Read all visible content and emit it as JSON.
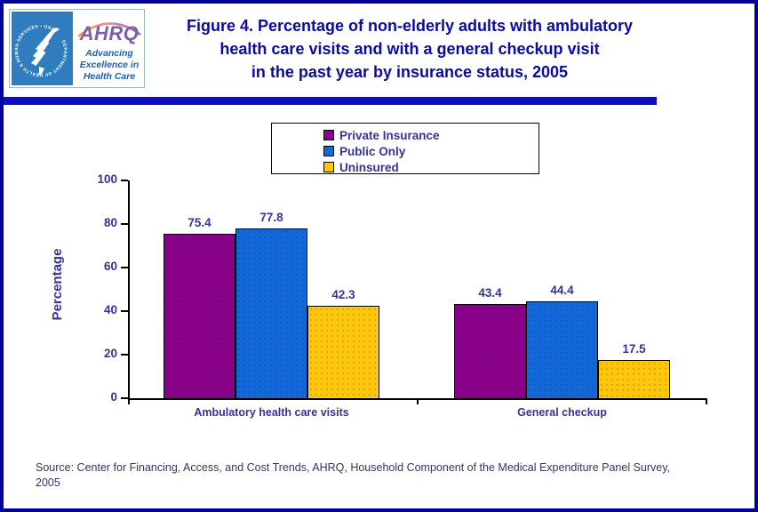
{
  "header": {
    "logo": {
      "seal_ring_text": "DEPARTMENT OF HEALTH & HUMAN SERVICES • USA",
      "ahrq_acronym": "AHRQ",
      "tagline_lines": [
        "Advancing",
        "Excellence in",
        "Health Care"
      ]
    },
    "title_lines": [
      "Figure 4. Percentage of non-elderly adults with ambulatory",
      "health care visits and with a general checkup visit",
      "in the past year by insurance status, 2005"
    ]
  },
  "chart_data": {
    "type": "bar",
    "title": "Figure 4. Percentage of non-elderly adults with ambulatory health care visits and with a general checkup visit in the past year by insurance status, 2005",
    "categories": [
      "Ambulatory health care visits",
      "General checkup"
    ],
    "series": [
      {
        "name": "Private Insurance",
        "color": "#8B008B",
        "values": [
          75.4,
          43.4
        ]
      },
      {
        "name": "Public Only",
        "color": "#1268D8",
        "values": [
          77.8,
          44.4
        ]
      },
      {
        "name": "Uninsured",
        "color": "#FFC60A",
        "values": [
          42.3,
          17.5
        ]
      }
    ],
    "xlabel": "",
    "ylabel": "Percentage",
    "ylim": [
      0,
      100
    ],
    "yticks": [
      0,
      20,
      40,
      60,
      80,
      100
    ],
    "grid": false,
    "legend_position": "top-center",
    "value_labels_shown": true
  },
  "colors": {
    "page_border": "#0000A0",
    "divider_bar": "#0D0DC6",
    "title_text": "#0A0AA6",
    "chart_text": "#333399",
    "source_text": "#333366",
    "axis": "#000000",
    "hhs_logo_background": "#2F7CBE",
    "ahrq_wordmark": "#7C5FA5",
    "ahrq_tagline": "#1E5FAC"
  },
  "source": {
    "lines": [
      "Source: Center for Financing, Access, and Cost Trends, AHRQ, Household Component of the Medical Expenditure Panel Survey,",
      "2005"
    ]
  }
}
